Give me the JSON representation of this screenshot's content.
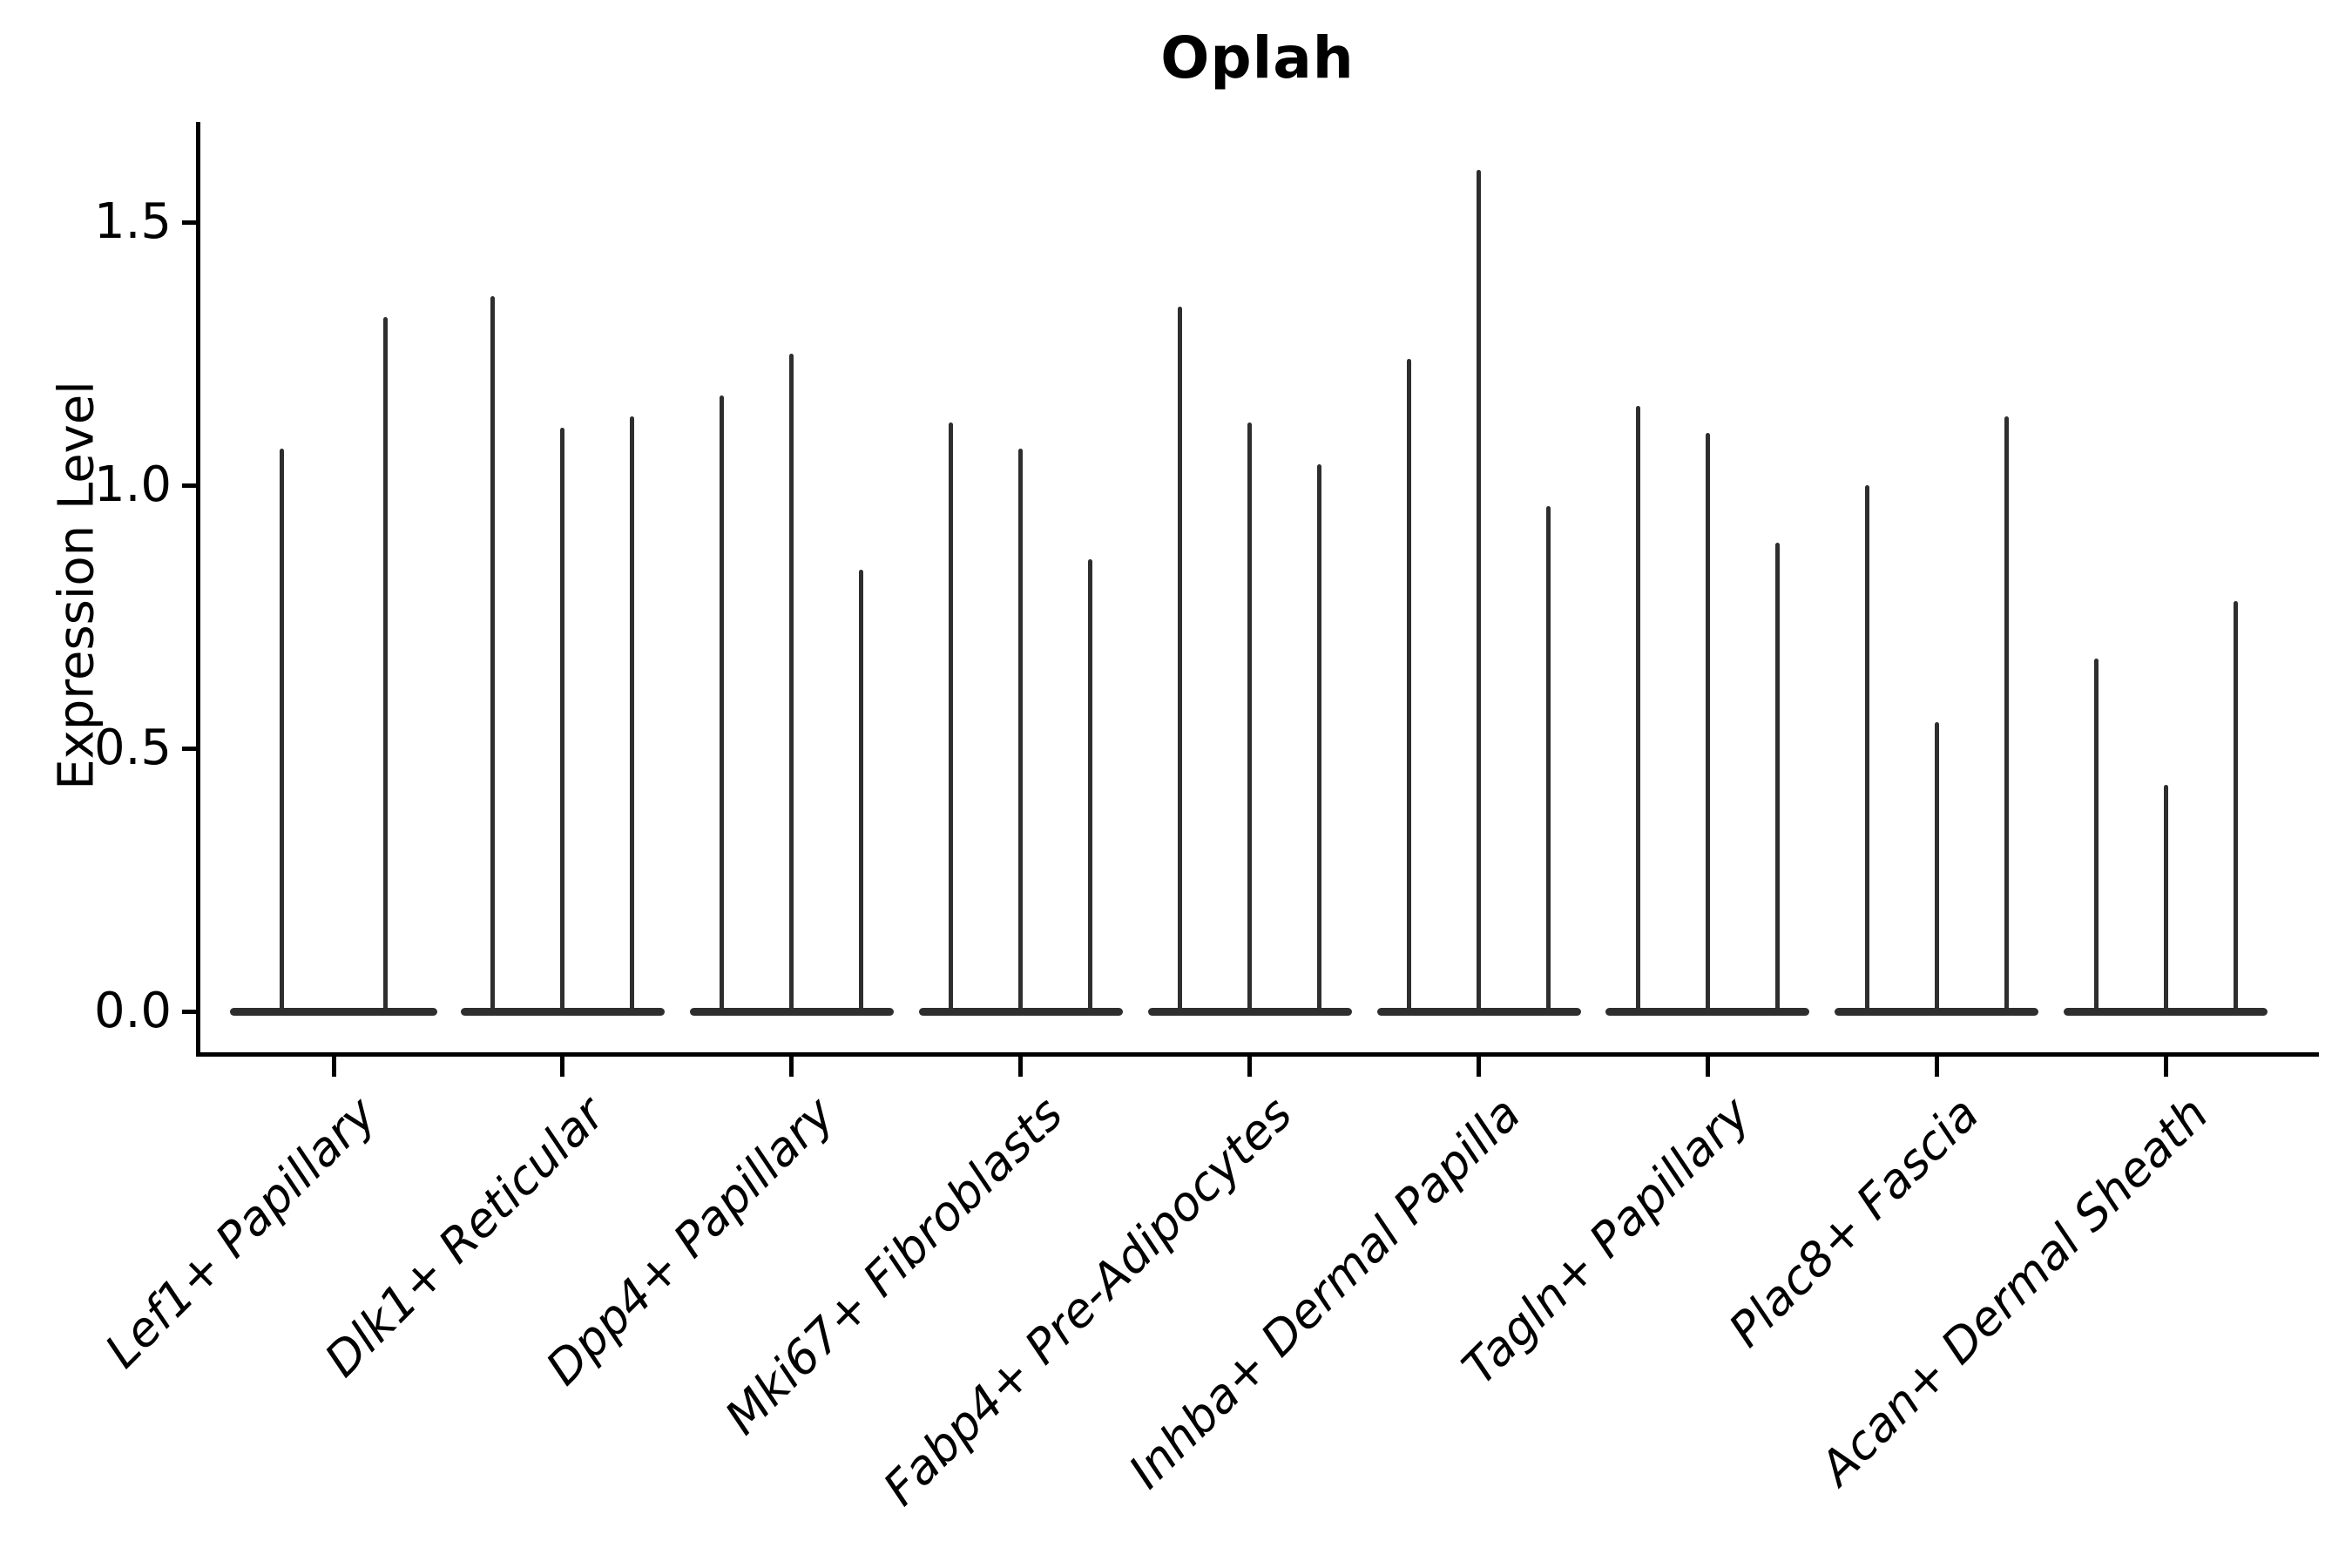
{
  "title": "Oplah",
  "colors": {
    "background": "#ffffff",
    "violin": "#2e2e2e",
    "axis": "#000000",
    "text": "#000000"
  },
  "chart_data": {
    "type": "violin",
    "title": "Oplah",
    "xlabel": "",
    "ylabel": "Expression Level",
    "ylim": [
      0,
      1.66
    ],
    "grid": false,
    "legend": "none",
    "distribution_note": "Each violin is needle-thin: density concentrated at 0 with a narrow spike up to the listed maximum expression value.",
    "yticks": [
      {
        "label": "1.5",
        "value": 1.5
      },
      {
        "label": "1.0",
        "value": 1.0
      },
      {
        "label": "0.5",
        "value": 0.5
      },
      {
        "label": "0.0",
        "value": 0.0
      }
    ],
    "categories": [
      {
        "label": "Lef1+ Papillary",
        "violin_maxima": [
          1.07,
          1.32
        ]
      },
      {
        "label": "Dlk1+ Reticular",
        "violin_maxima": [
          1.36,
          1.11,
          1.13
        ]
      },
      {
        "label": "Dpp4+ Papillary",
        "violin_maxima": [
          1.17,
          1.25,
          0.84
        ]
      },
      {
        "label": "Mki67+ Fibroblasts",
        "violin_maxima": [
          1.12,
          1.07,
          0.86
        ]
      },
      {
        "label": "Fabp4+ Pre-Adipocytes",
        "violin_maxima": [
          1.34,
          1.12,
          1.04
        ]
      },
      {
        "label": "Inhba+ Dermal Papilla",
        "violin_maxima": [
          1.24,
          1.6,
          0.96
        ]
      },
      {
        "label": "Tagln+ Papillary",
        "violin_maxima": [
          1.15,
          1.1,
          0.89
        ]
      },
      {
        "label": "Plac8+ Fascia",
        "violin_maxima": [
          1.0,
          0.55,
          1.13
        ]
      },
      {
        "label": "Acan+ Dermal Sheath",
        "violin_maxima": [
          0.67,
          0.43,
          0.78
        ]
      }
    ]
  }
}
